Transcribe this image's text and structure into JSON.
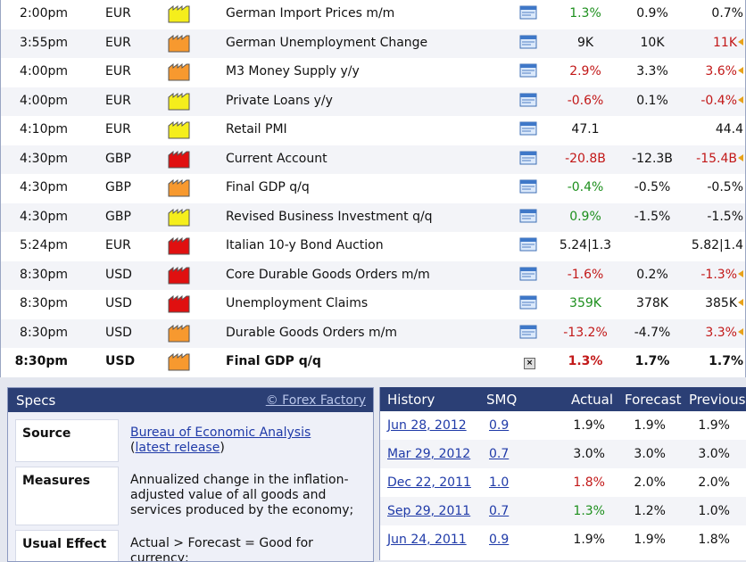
{
  "calendar": {
    "rows": [
      {
        "time": "2:00pm",
        "currency": "EUR",
        "impact": "low",
        "event": "German Import Prices m/m",
        "actual": "1.3%",
        "actual_color": "green",
        "forecast": "0.9%",
        "previous": "0.7%",
        "previous_color": "",
        "revised": false
      },
      {
        "time": "3:55pm",
        "currency": "EUR",
        "impact": "medium",
        "event": "German Unemployment Change",
        "actual": "9K",
        "actual_color": "",
        "forecast": "10K",
        "previous": "11K",
        "previous_color": "red",
        "revised": true
      },
      {
        "time": "4:00pm",
        "currency": "EUR",
        "impact": "medium",
        "event": "M3 Money Supply y/y",
        "actual": "2.9%",
        "actual_color": "red",
        "forecast": "3.3%",
        "previous": "3.6%",
        "previous_color": "red",
        "revised": true
      },
      {
        "time": "4:00pm",
        "currency": "EUR",
        "impact": "low",
        "event": "Private Loans y/y",
        "actual": "-0.6%",
        "actual_color": "red",
        "forecast": "0.1%",
        "previous": "-0.4%",
        "previous_color": "red",
        "revised": true
      },
      {
        "time": "4:10pm",
        "currency": "EUR",
        "impact": "low",
        "event": "Retail PMI",
        "actual": "47.1",
        "actual_color": "",
        "forecast": "",
        "previous": "44.4",
        "previous_color": "",
        "revised": false
      },
      {
        "time": "4:30pm",
        "currency": "GBP",
        "impact": "high",
        "event": "Current Account",
        "actual": "-20.8B",
        "actual_color": "red",
        "forecast": "-12.3B",
        "previous": "-15.4B",
        "previous_color": "red",
        "revised": true
      },
      {
        "time": "4:30pm",
        "currency": "GBP",
        "impact": "medium",
        "event": "Final GDP q/q",
        "actual": "-0.4%",
        "actual_color": "green",
        "forecast": "-0.5%",
        "previous": "-0.5%",
        "previous_color": "",
        "revised": false
      },
      {
        "time": "4:30pm",
        "currency": "GBP",
        "impact": "low",
        "event": "Revised Business Investment q/q",
        "actual": "0.9%",
        "actual_color": "green",
        "forecast": "-1.5%",
        "previous": "-1.5%",
        "previous_color": "",
        "revised": false
      },
      {
        "time": "5:24pm",
        "currency": "EUR",
        "impact": "high",
        "event": "Italian 10-y Bond Auction",
        "actual": "5.24|1.3",
        "actual_color": "",
        "forecast": "",
        "previous": "5.82|1.4",
        "previous_color": "",
        "revised": false
      },
      {
        "time": "8:30pm",
        "currency": "USD",
        "impact": "high",
        "event": "Core Durable Goods Orders m/m",
        "actual": "-1.6%",
        "actual_color": "red",
        "forecast": "0.2%",
        "previous": "-1.3%",
        "previous_color": "red",
        "revised": true
      },
      {
        "time": "8:30pm",
        "currency": "USD",
        "impact": "high",
        "event": "Unemployment Claims",
        "actual": "359K",
        "actual_color": "green",
        "forecast": "378K",
        "previous": "385K",
        "previous_color": "",
        "revised": true
      },
      {
        "time": "8:30pm",
        "currency": "USD",
        "impact": "medium",
        "event": "Durable Goods Orders m/m",
        "actual": "-13.2%",
        "actual_color": "red",
        "forecast": "-4.7%",
        "previous": "3.3%",
        "previous_color": "red",
        "revised": true
      },
      {
        "time": "8:30pm",
        "currency": "USD",
        "impact": "medium",
        "event": "Final GDP q/q",
        "actual": "1.3%",
        "actual_color": "red",
        "forecast": "1.7%",
        "previous": "1.7%",
        "previous_color": "",
        "revised": false,
        "selected": true
      }
    ],
    "impact_colors": {
      "low": "#f5ee1c",
      "medium": "#f7992f",
      "high": "#e01010"
    }
  },
  "specs": {
    "title": "Specs",
    "credit": "© Forex Factory",
    "source_label": "Source",
    "source_link": "Bureau of Economic Analysis",
    "source_paren_open": "(",
    "source_release": "latest release",
    "source_paren_close": ")",
    "measures_label": "Measures",
    "measures_value": "Annualized change in the inflation-adjusted value of all goods and services produced by the economy;",
    "effect_label": "Usual Effect",
    "effect_value": "Actual > Forecast = Good for currency;"
  },
  "history": {
    "headers": {
      "history": "History",
      "smq": "SMQ",
      "actual": "Actual",
      "forecast": "Forecast",
      "previous": "Previous"
    },
    "rows": [
      {
        "date": "Jun 28, 2012",
        "smq": "0.9",
        "actual": "1.9%",
        "actual_color": "",
        "forecast": "1.9%",
        "previous": "1.9%"
      },
      {
        "date": "Mar 29, 2012",
        "smq": "0.7",
        "actual": "3.0%",
        "actual_color": "",
        "forecast": "3.0%",
        "previous": "3.0%"
      },
      {
        "date": "Dec 22, 2011",
        "smq": "1.0",
        "actual": "1.8%",
        "actual_color": "red",
        "forecast": "2.0%",
        "previous": "2.0%"
      },
      {
        "date": "Sep 29, 2011",
        "smq": "0.7",
        "actual": "1.3%",
        "actual_color": "green",
        "forecast": "1.2%",
        "previous": "1.0%"
      },
      {
        "date": "Jun 24, 2011",
        "smq": "0.9",
        "actual": "1.9%",
        "actual_color": "",
        "forecast": "1.9%",
        "previous": "1.8%"
      }
    ]
  }
}
